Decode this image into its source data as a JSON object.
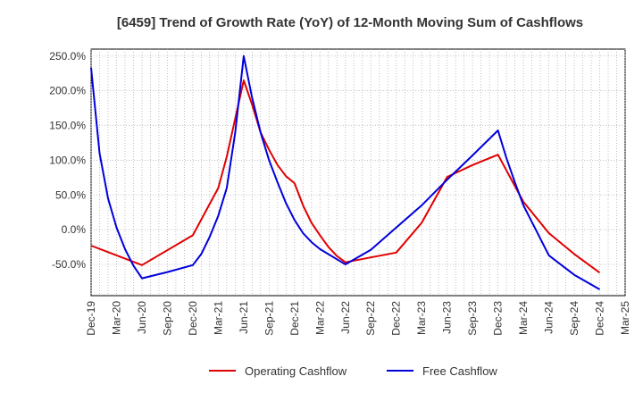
{
  "chart_data": {
    "type": "line",
    "title": "[6459]  Trend of Growth Rate (YoY) of 12-Month Moving Sum of Cashflows",
    "xlabel": "",
    "ylabel": "",
    "x_ticks": [
      "Dec-19",
      "Mar-20",
      "Jun-20",
      "Sep-20",
      "Dec-20",
      "Mar-21",
      "Jun-21",
      "Sep-21",
      "Dec-21",
      "Mar-22",
      "Jun-22",
      "Sep-22",
      "Dec-22",
      "Mar-23",
      "Jun-23",
      "Sep-23",
      "Dec-23",
      "Mar-24",
      "Jun-24",
      "Sep-24",
      "Dec-24",
      "Mar-25"
    ],
    "y_ticks": [
      250,
      200,
      150,
      100,
      50,
      0,
      -50
    ],
    "y_tick_labels": [
      "250.0%",
      "200.0%",
      "150.0%",
      "100.0%",
      "50.0%",
      "0.0%",
      "-50.0%"
    ],
    "ylim": [
      -95,
      260
    ],
    "grid": true,
    "legend_position": "bottom",
    "series": [
      {
        "name": "Operating Cashflow",
        "color": "#e00000",
        "points": [
          [
            "2019-12",
            -23
          ],
          [
            "2020-06",
            -51
          ],
          [
            "2020-12",
            -8
          ],
          [
            "2021-03",
            60
          ],
          [
            "2021-04",
            105
          ],
          [
            "2021-05",
            160
          ],
          [
            "2021-06",
            215
          ],
          [
            "2021-07",
            180
          ],
          [
            "2021-08",
            140
          ],
          [
            "2021-09",
            115
          ],
          [
            "2021-10",
            93
          ],
          [
            "2021-11",
            77
          ],
          [
            "2021-12",
            67
          ],
          [
            "2022-01",
            35
          ],
          [
            "2022-02",
            10
          ],
          [
            "2022-03",
            -8
          ],
          [
            "2022-04",
            -25
          ],
          [
            "2022-05",
            -38
          ],
          [
            "2022-06",
            -47
          ],
          [
            "2022-09",
            -40
          ],
          [
            "2022-12",
            -33
          ],
          [
            "2023-03",
            10
          ],
          [
            "2023-06",
            76
          ],
          [
            "2023-09",
            93
          ],
          [
            "2023-12",
            108
          ],
          [
            "2024-03",
            40
          ],
          [
            "2024-06",
            -5
          ],
          [
            "2024-09",
            -35
          ],
          [
            "2024-12",
            -62
          ]
        ]
      },
      {
        "name": "Free Cashflow",
        "color": "#0000dd",
        "points": [
          [
            "2019-12",
            233
          ],
          [
            "2020-01",
            110
          ],
          [
            "2020-02",
            45
          ],
          [
            "2020-03",
            3
          ],
          [
            "2020-04",
            -28
          ],
          [
            "2020-05",
            -52
          ],
          [
            "2020-06",
            -70
          ],
          [
            "2020-09",
            -61
          ],
          [
            "2020-12",
            -51
          ],
          [
            "2021-01",
            -35
          ],
          [
            "2021-02",
            -10
          ],
          [
            "2021-03",
            20
          ],
          [
            "2021-04",
            60
          ],
          [
            "2021-05",
            140
          ],
          [
            "2021-06",
            250
          ],
          [
            "2021-07",
            190
          ],
          [
            "2021-08",
            140
          ],
          [
            "2021-09",
            100
          ],
          [
            "2021-10",
            68
          ],
          [
            "2021-11",
            38
          ],
          [
            "2021-12",
            14
          ],
          [
            "2022-01",
            -5
          ],
          [
            "2022-02",
            -18
          ],
          [
            "2022-03",
            -28
          ],
          [
            "2022-06",
            -50
          ],
          [
            "2022-09",
            -29
          ],
          [
            "2022-12",
            3
          ],
          [
            "2023-03",
            35
          ],
          [
            "2023-06",
            72
          ],
          [
            "2023-09",
            107
          ],
          [
            "2023-12",
            143
          ],
          [
            "2024-01",
            103
          ],
          [
            "2024-02",
            68
          ],
          [
            "2024-03",
            35
          ],
          [
            "2024-06",
            -37
          ],
          [
            "2024-09",
            -65
          ],
          [
            "2024-12",
            -86
          ]
        ]
      }
    ]
  }
}
